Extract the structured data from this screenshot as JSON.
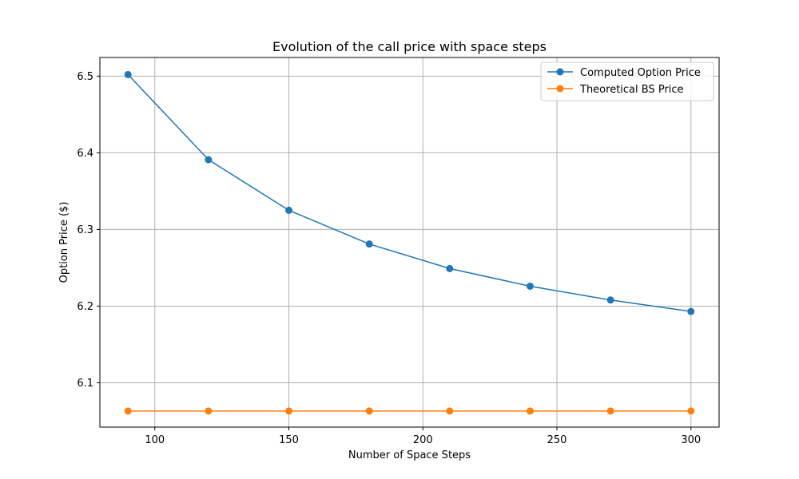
{
  "chart_data": {
    "type": "line",
    "title": "Evolution of the call price with space steps",
    "xlabel": "Number of Space Steps",
    "ylabel": "Option Price ($)",
    "x": [
      90,
      120,
      150,
      180,
      210,
      240,
      270,
      300
    ],
    "xlim": [
      79.5,
      310.5
    ],
    "ylim": [
      6.0422,
      6.5243
    ],
    "xticks": [
      100,
      150,
      200,
      250,
      300
    ],
    "xtick_labels": [
      "100",
      "150",
      "200",
      "250",
      "300"
    ],
    "yticks": [
      6.1,
      6.2,
      6.3,
      6.4,
      6.5
    ],
    "ytick_labels": [
      "6.1",
      "6.2",
      "6.3",
      "6.4",
      "6.5"
    ],
    "grid": true,
    "legend_position": "top-right",
    "series": [
      {
        "name": "Computed Option Price",
        "color": "#1f77b4",
        "marker": "circle",
        "values": [
          6.502,
          6.391,
          6.325,
          6.281,
          6.249,
          6.226,
          6.208,
          6.193
        ]
      },
      {
        "name": "Theoretical BS Price",
        "color": "#ff7f0e",
        "marker": "circle",
        "values": [
          6.0632,
          6.0632,
          6.0632,
          6.0632,
          6.0632,
          6.0632,
          6.0632,
          6.0632
        ]
      }
    ]
  }
}
